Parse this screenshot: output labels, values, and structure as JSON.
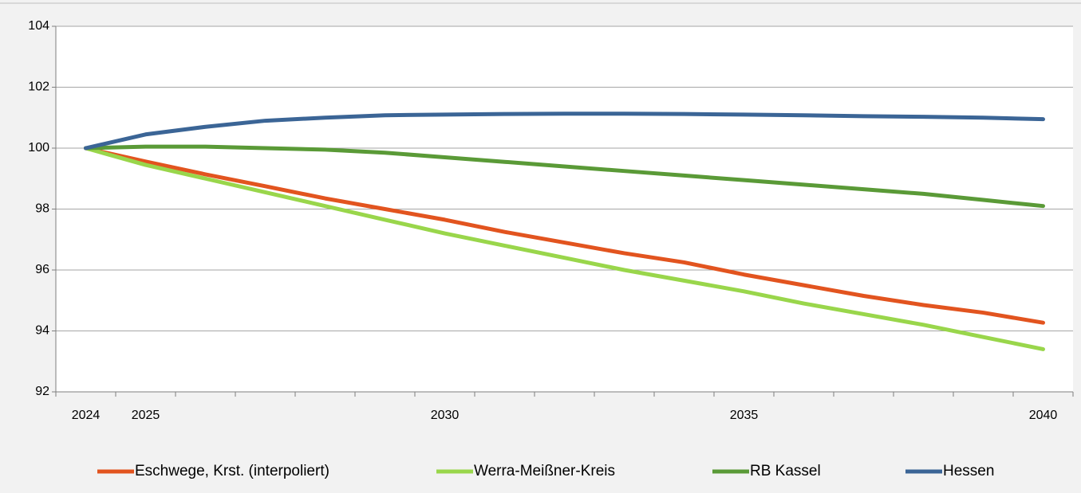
{
  "chart_data": {
    "type": "line",
    "categories": [
      "2024",
      "2025",
      null,
      null,
      null,
      null,
      "2030",
      null,
      null,
      null,
      null,
      "2035",
      null,
      null,
      null,
      null,
      "2040"
    ],
    "series": [
      {
        "name": "Eschwege, Krst. (interpoliert)",
        "color": "#e2541f",
        "values": [
          100,
          99.56,
          99.14,
          98.75,
          98.35,
          98.0,
          97.65,
          97.25,
          96.9,
          96.55,
          96.25,
          95.85,
          95.5,
          95.15,
          94.85,
          94.6,
          94.27
        ]
      },
      {
        "name": "Werra-Meißner-Kreis",
        "color": "#99d64b",
        "values": [
          100,
          99.45,
          99.0,
          98.55,
          98.1,
          97.65,
          97.2,
          96.8,
          96.4,
          96.0,
          95.65,
          95.3,
          94.9,
          94.55,
          94.2,
          93.8,
          93.4
        ]
      },
      {
        "name": "RB Kassel",
        "color": "#5a9a37",
        "values": [
          100,
          100.05,
          100.05,
          100.0,
          99.95,
          99.85,
          99.7,
          99.55,
          99.4,
          99.25,
          99.1,
          98.95,
          98.8,
          98.65,
          98.5,
          98.3,
          98.1
        ]
      },
      {
        "name": "Hessen",
        "color": "#3b6596",
        "values": [
          100,
          100.45,
          100.7,
          100.9,
          101.0,
          101.08,
          101.1,
          101.12,
          101.13,
          101.13,
          101.12,
          101.1,
          101.08,
          101.05,
          101.03,
          101.0,
          100.95
        ]
      }
    ],
    "ylim": [
      92,
      104
    ],
    "yticks": [
      92,
      94,
      96,
      98,
      100,
      102,
      104
    ],
    "grid": true
  }
}
